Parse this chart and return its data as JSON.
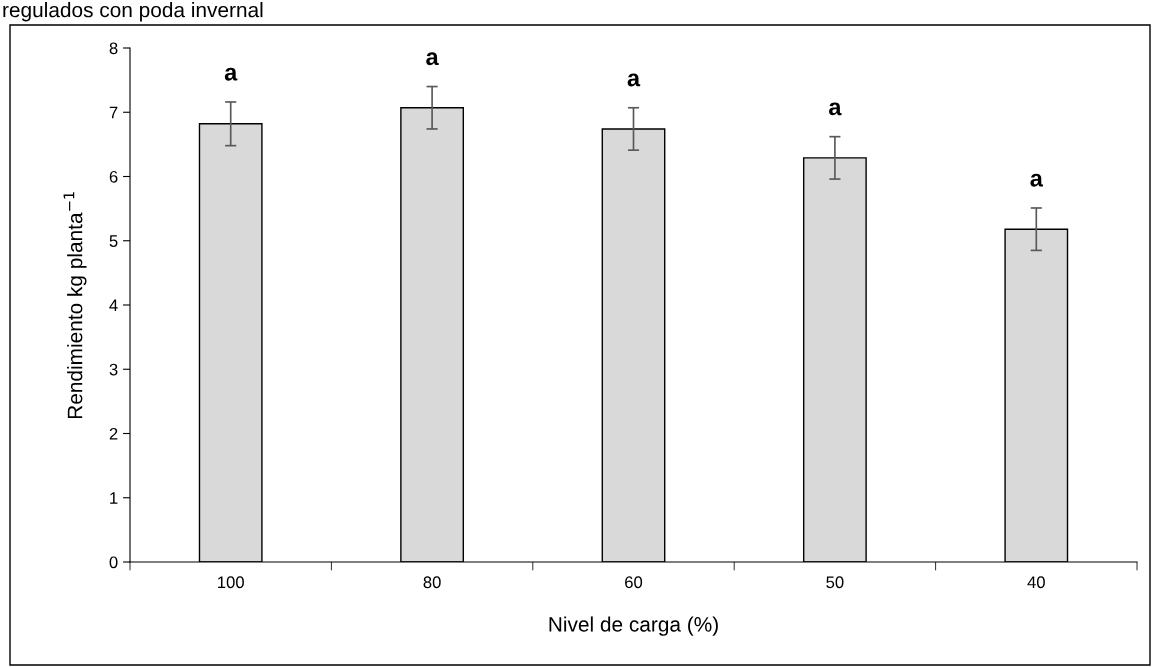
{
  "chart_data": {
    "type": "bar",
    "title": "regulados con poda invernal",
    "xlabel": "Nivel de carga (%)",
    "ylabel": "Rendimiento kg planta$^{−1}$",
    "categories": [
      "100",
      "80",
      "60",
      "50",
      "40"
    ],
    "values": [
      6.82,
      7.07,
      6.74,
      6.29,
      5.18
    ],
    "errors": [
      0.34,
      0.33,
      0.33,
      0.33,
      0.33
    ],
    "color": "#d9d9d9",
    "ylim": [
      0,
      8
    ],
    "yticks": [
      0,
      1,
      2,
      3,
      4,
      5,
      6,
      7,
      8
    ],
    "grid": false,
    "legend": false,
    "annotations": [
      "a",
      "a",
      "a",
      "a",
      "a"
    ]
  }
}
